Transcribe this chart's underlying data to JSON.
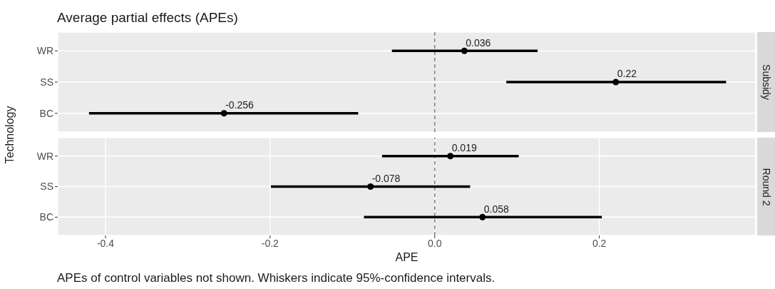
{
  "chart_data": [
    {
      "type": "scatter",
      "orientation": "horizontal",
      "title": "Average partial effects (APEs)",
      "subtitle": "Subsidy",
      "ylabel": "Technology",
      "categories": [
        "WR",
        "SS",
        "BC"
      ],
      "values": [
        0.036,
        0.22,
        -0.256
      ],
      "errors": [
        [
          -0.052,
          0.125
        ],
        [
          0.087,
          0.354
        ],
        [
          -0.42,
          -0.093
        ]
      ],
      "color": "#000000",
      "data_labels": true,
      "xlim": [
        -0.458,
        0.39
      ],
      "xticks": [
        -0.4,
        -0.2,
        0.0,
        0.2
      ],
      "tick_labels": "y",
      "grid": true,
      "marker": "circle",
      "ref_lines": [
        {
          "axis": "x",
          "value": 0,
          "color": "#7f7f7f",
          "line_style": "dashed"
        }
      ]
    },
    {
      "type": "scatter",
      "orientation": "horizontal",
      "subtitle": "Round 2",
      "xlabel": "APE",
      "categories": [
        "WR",
        "SS",
        "BC"
      ],
      "values": [
        0.019,
        -0.078,
        0.058
      ],
      "errors": [
        [
          -0.064,
          0.102
        ],
        [
          -0.199,
          0.043
        ],
        [
          -0.086,
          0.203
        ]
      ],
      "color": "#000000",
      "data_labels": true,
      "xlim": [
        -0.458,
        0.39
      ],
      "xticks": [
        -0.4,
        -0.2,
        {
          "value": 0.0,
          "label": "0.0"
        },
        0.2
      ],
      "grid": true,
      "marker": "circle",
      "ref_lines": [
        {
          "axis": "x",
          "value": 0,
          "color": "#7f7f7f",
          "line_style": "dashed"
        }
      ],
      "annotations": [
        "APEs of control variables not shown. Whiskers indicate 95%-confidence intervals."
      ]
    }
  ]
}
